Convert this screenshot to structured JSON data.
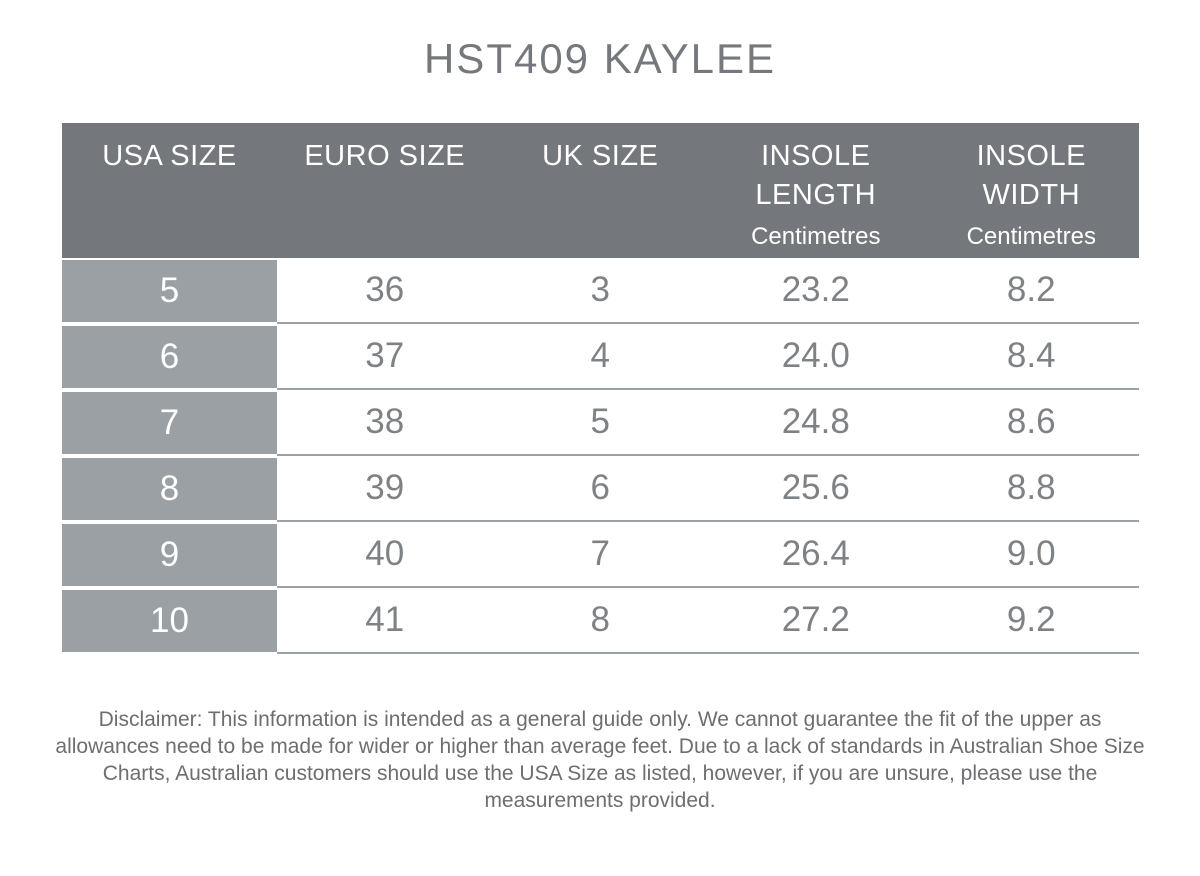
{
  "title": "HST409 KAYLEE",
  "table": {
    "columns": [
      {
        "label": "USA SIZE",
        "sub": ""
      },
      {
        "label": "EURO SIZE",
        "sub": ""
      },
      {
        "label": "UK SIZE",
        "sub": ""
      },
      {
        "label": "INSOLE LENGTH",
        "sub": "Centimetres"
      },
      {
        "label": "INSOLE WIDTH",
        "sub": "Centimetres"
      }
    ],
    "rows": [
      {
        "usa": "5",
        "euro": "36",
        "uk": "3",
        "insole_length": "23.2",
        "insole_width": "8.2"
      },
      {
        "usa": "6",
        "euro": "37",
        "uk": "4",
        "insole_length": "24.0",
        "insole_width": "8.4"
      },
      {
        "usa": "7",
        "euro": "38",
        "uk": "5",
        "insole_length": "24.8",
        "insole_width": "8.6"
      },
      {
        "usa": "8",
        "euro": "39",
        "uk": "6",
        "insole_length": "25.6",
        "insole_width": "8.8"
      },
      {
        "usa": "9",
        "euro": "40",
        "uk": "7",
        "insole_length": "26.4",
        "insole_width": "9.0"
      },
      {
        "usa": "10",
        "euro": "41",
        "uk": "8",
        "insole_length": "27.2",
        "insole_width": "9.2"
      }
    ]
  },
  "disclaimer": "Disclaimer: This information is intended as a general guide only. We cannot guarantee the fit of the upper as allowances need to be made for wider or higher than average feet. Due to a lack of standards in Australian Shoe Size Charts, Australian customers should use the USA Size as listed, however, if you are unsure, please use the measurements provided.",
  "colors": {
    "header_bg": "#74777B",
    "row_label_bg": "#9BA0A5",
    "separator": "#9BA0A5",
    "header_text": "#FFFFFF",
    "data_text": "#7F8285",
    "title_text": "#75787C",
    "disclaimer_text": "#6D6E71"
  },
  "chart_data": {
    "type": "table",
    "title": "HST409 KAYLEE",
    "columns": [
      "USA SIZE",
      "EURO SIZE",
      "UK SIZE",
      "INSOLE LENGTH (Centimetres)",
      "INSOLE WIDTH (Centimetres)"
    ],
    "rows": [
      [
        5,
        36,
        3,
        23.2,
        8.2
      ],
      [
        6,
        37,
        4,
        24.0,
        8.4
      ],
      [
        7,
        38,
        5,
        24.8,
        8.6
      ],
      [
        8,
        39,
        6,
        25.6,
        8.8
      ],
      [
        9,
        40,
        7,
        26.4,
        9.0
      ],
      [
        10,
        41,
        8,
        27.2,
        9.2
      ]
    ]
  }
}
